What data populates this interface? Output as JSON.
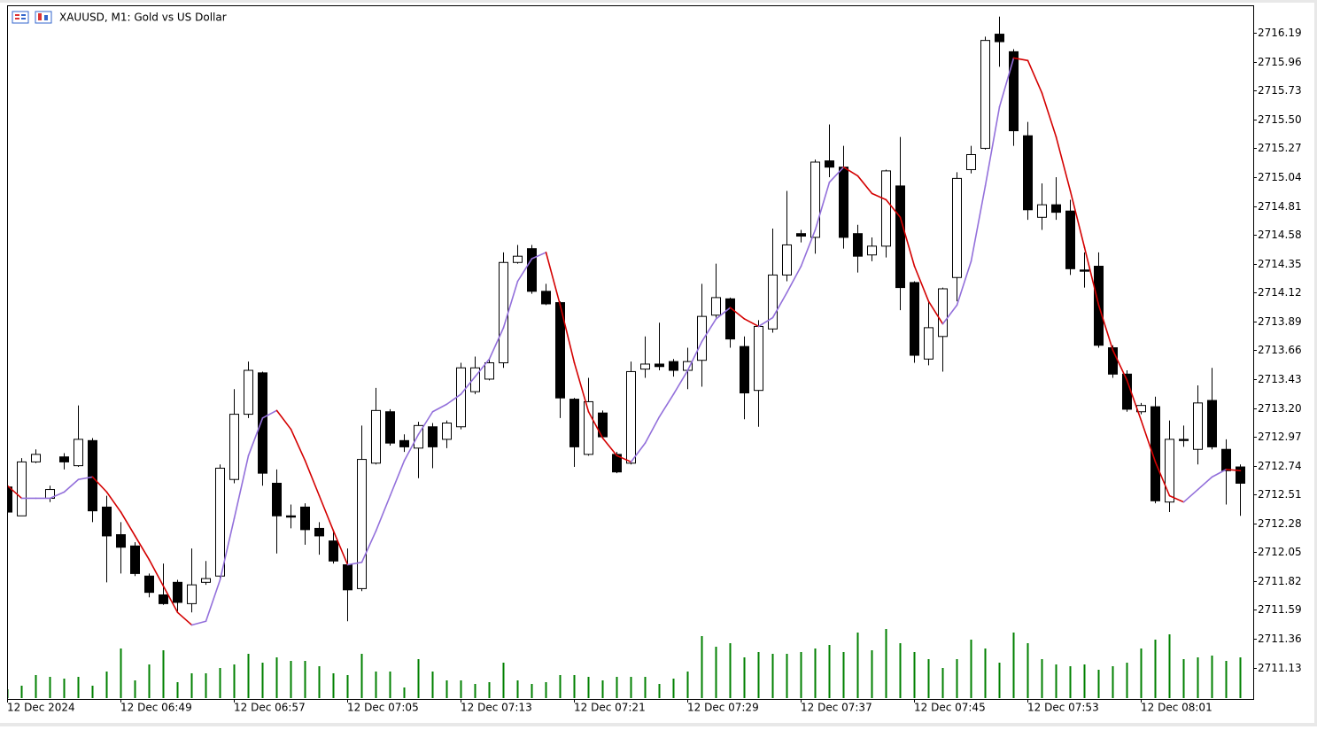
{
  "chart_data": {
    "type": "candlestick",
    "title": "XAUUSD, M1:  Gold vs US Dollar",
    "categories": [
      "12 Dec 2024",
      null,
      null,
      null,
      null,
      null,
      null,
      null,
      "12 Dec 06:49",
      null,
      null,
      null,
      null,
      null,
      null,
      null,
      "12 Dec 06:57",
      null,
      null,
      null,
      null,
      null,
      null,
      null,
      "12 Dec 07:05",
      null,
      null,
      null,
      null,
      null,
      null,
      null,
      "12 Dec 07:13",
      null,
      null,
      null,
      null,
      null,
      null,
      null,
      "12 Dec 07:21",
      null,
      null,
      null,
      null,
      null,
      null,
      null,
      "12 Dec 07:29",
      null,
      null,
      null,
      null,
      null,
      null,
      null,
      "12 Dec 07:37",
      null,
      null,
      null,
      null,
      null,
      null,
      null,
      "12 Dec 07:45",
      null,
      null,
      null,
      null,
      null,
      null,
      null,
      "12 Dec 07:53",
      null,
      null,
      null,
      null,
      null,
      null,
      null,
      "12 Dec 08:01",
      null,
      null,
      null,
      null,
      null,
      null,
      null
    ],
    "open": [
      2712.57,
      2712.34,
      2712.77,
      2712.48,
      2712.81,
      2712.74,
      2712.94,
      2712.41,
      2712.19,
      2712.1,
      2711.86,
      2711.71,
      2711.81,
      2711.64,
      2711.81,
      2711.86,
      2712.63,
      2713.15,
      2713.48,
      2712.6,
      2712.34,
      2712.41,
      2712.24,
      2712.14,
      2711.95,
      2711.76,
      2712.76,
      2713.17,
      2712.94,
      2712.88,
      2713.05,
      2712.95,
      2713.05,
      2713.33,
      2713.43,
      2713.56,
      2714.36,
      2714.47,
      2714.13,
      2714.04,
      2713.27,
      2712.83,
      2713.16,
      2712.83,
      2712.76,
      2713.51,
      2713.55,
      2713.57,
      2713.5,
      2713.58,
      2713.94,
      2714.07,
      2713.69,
      2713.34,
      2713.83,
      2714.26,
      2714.59,
      2714.56,
      2715.17,
      2715.12,
      2714.59,
      2714.42,
      2714.49,
      2714.97,
      2714.2,
      2713.59,
      2713.77,
      2714.24,
      2715.1,
      2715.27,
      2716.18,
      2716.04,
      2715.37,
      2714.72,
      2714.82,
      2714.77,
      2714.3,
      2714.33,
      2713.68,
      2713.47,
      2713.17,
      2713.21,
      2712.45,
      2712.95,
      2712.87,
      2713.26,
      2712.87,
      2712.73
    ],
    "high": [
      2712.58,
      2712.8,
      2712.87,
      2712.58,
      2712.84,
      2713.22,
      2712.96,
      2712.5,
      2712.29,
      2712.13,
      2711.88,
      2711.96,
      2711.83,
      2712.08,
      2711.98,
      2712.75,
      2713.35,
      2713.57,
      2713.49,
      2712.71,
      2712.43,
      2712.44,
      2712.29,
      2712.23,
      2712.08,
      2713.06,
      2713.36,
      2713.19,
      2712.99,
      2713.09,
      2713.08,
      2713.1,
      2713.56,
      2713.61,
      2713.59,
      2714.44,
      2714.5,
      2714.5,
      2714.19,
      2714.05,
      2713.28,
      2713.44,
      2713.18,
      2712.85,
      2713.57,
      2713.77,
      2713.88,
      2713.59,
      2713.68,
      2714.19,
      2714.35,
      2714.08,
      2713.77,
      2713.9,
      2714.63,
      2714.93,
      2714.62,
      2715.18,
      2715.46,
      2715.29,
      2714.66,
      2714.56,
      2715.1,
      2715.36,
      2714.21,
      2714.05,
      2714.16,
      2715.08,
      2715.29,
      2716.16,
      2716.32,
      2716.06,
      2715.48,
      2714.99,
      2715.04,
      2714.86,
      2714.44,
      2714.44,
      2713.7,
      2713.5,
      2713.24,
      2713.29,
      2713.1,
      2713.06,
      2713.38,
      2713.52,
      2712.95,
      2712.75
    ],
    "low": [
      2712.36,
      2712.34,
      2712.76,
      2712.45,
      2712.71,
      2712.73,
      2712.29,
      2711.81,
      2711.88,
      2711.86,
      2711.69,
      2711.63,
      2711.58,
      2711.57,
      2711.79,
      2711.83,
      2712.6,
      2713.12,
      2712.58,
      2712.04,
      2712.24,
      2712.11,
      2712.03,
      2711.96,
      2711.5,
      2711.74,
      2712.75,
      2712.9,
      2712.85,
      2712.64,
      2712.72,
      2712.88,
      2713.03,
      2713.31,
      2713.42,
      2713.52,
      2714.35,
      2714.11,
      2714.02,
      2713.12,
      2712.73,
      2712.82,
      2712.96,
      2712.68,
      2712.75,
      2713.44,
      2713.5,
      2713.45,
      2713.35,
      2713.37,
      2713.92,
      2713.68,
      2713.11,
      2713.05,
      2713.8,
      2714.21,
      2714.52,
      2714.43,
      2715.04,
      2714.47,
      2714.28,
      2714.37,
      2714.4,
      2713.98,
      2713.56,
      2713.54,
      2713.49,
      2714.05,
      2715.07,
      2715.26,
      2715.92,
      2715.29,
      2714.7,
      2714.62,
      2714.7,
      2714.26,
      2714.16,
      2713.68,
      2713.44,
      2713.17,
      2713.15,
      2712.44,
      2712.37,
      2712.89,
      2712.75,
      2712.87,
      2712.43,
      2712.34
    ],
    "close": [
      2712.37,
      2712.77,
      2712.83,
      2712.55,
      2712.77,
      2712.95,
      2712.38,
      2712.18,
      2712.09,
      2711.88,
      2711.73,
      2711.64,
      2711.65,
      2711.79,
      2711.84,
      2712.72,
      2713.15,
      2713.5,
      2712.68,
      2712.34,
      2712.33,
      2712.23,
      2712.18,
      2711.98,
      2711.75,
      2712.79,
      2713.18,
      2712.92,
      2712.89,
      2713.06,
      2712.89,
      2713.08,
      2713.52,
      2713.52,
      2713.56,
      2714.36,
      2714.41,
      2714.13,
      2714.03,
      2713.28,
      2712.89,
      2713.25,
      2712.97,
      2712.69,
      2713.49,
      2713.55,
      2713.53,
      2713.5,
      2713.57,
      2713.93,
      2714.08,
      2713.75,
      2713.32,
      2713.85,
      2714.26,
      2714.5,
      2714.57,
      2715.16,
      2715.12,
      2714.56,
      2714.41,
      2714.49,
      2715.09,
      2714.16,
      2713.62,
      2713.84,
      2714.15,
      2715.03,
      2715.22,
      2716.13,
      2716.12,
      2715.41,
      2714.78,
      2714.82,
      2714.76,
      2714.31,
      2714.29,
      2713.7,
      2713.47,
      2713.19,
      2713.22,
      2712.46,
      2712.95,
      2712.94,
      2713.24,
      2712.89,
      2712.7,
      2712.6
    ],
    "ma": [
      2712.58,
      2712.48,
      2712.48,
      2712.48,
      2712.53,
      2712.63,
      2712.65,
      2712.53,
      2712.37,
      2712.18,
      2711.99,
      2711.78,
      2711.57,
      2711.47,
      2711.5,
      2711.83,
      2712.32,
      2712.82,
      2713.12,
      2713.18,
      2713.03,
      2712.78,
      2712.5,
      2712.22,
      2711.95,
      2711.97,
      2712.22,
      2712.5,
      2712.78,
      2712.99,
      2713.17,
      2713.23,
      2713.31,
      2713.45,
      2713.59,
      2713.84,
      2714.21,
      2714.39,
      2714.44,
      2714.02,
      2713.56,
      2713.17,
      2712.96,
      2712.82,
      2712.77,
      2712.92,
      2713.13,
      2713.31,
      2713.5,
      2713.73,
      2713.91,
      2714.0,
      2713.91,
      2713.85,
      2713.92,
      2714.12,
      2714.33,
      2714.62,
      2715.0,
      2715.12,
      2715.05,
      2714.91,
      2714.86,
      2714.72,
      2714.33,
      2714.05,
      2713.87,
      2714.02,
      2714.37,
      2714.97,
      2715.6,
      2715.99,
      2715.97,
      2715.71,
      2715.36,
      2714.93,
      2714.48,
      2714.02,
      2713.66,
      2713.42,
      2713.1,
      2712.77,
      2712.5,
      2712.45,
      2712.55,
      2712.65,
      2712.71,
      2712.7
    ],
    "volume": [
      10,
      14,
      26,
      24,
      22,
      24,
      14,
      30,
      56,
      20,
      38,
      54,
      18,
      28,
      28,
      34,
      38,
      50,
      40,
      46,
      42,
      42,
      36,
      28,
      26,
      50,
      30,
      30,
      12,
      44,
      30,
      20,
      20,
      16,
      18,
      40,
      20,
      16,
      18,
      26,
      26,
      24,
      20,
      24,
      24,
      24,
      16,
      22,
      30,
      70,
      58,
      62,
      46,
      52,
      50,
      50,
      52,
      56,
      60,
      52,
      74,
      54,
      78,
      62,
      52,
      44,
      34,
      44,
      66,
      56,
      40,
      74,
      62,
      44,
      38,
      36,
      38,
      32,
      36,
      40,
      56,
      66,
      72,
      44,
      46,
      48,
      42,
      46
    ],
    "ylim": [
      2710.88,
      2716.41
    ],
    "yticks": [
      2716.19,
      2715.96,
      2715.73,
      {
        "value": 2715.5,
        "label": "2715.50"
      },
      2715.27,
      2715.04,
      2714.81,
      2714.58,
      2714.35,
      2714.12,
      2713.89,
      2713.66,
      2713.43,
      {
        "value": 2713.2,
        "label": "2713.20"
      },
      2712.97,
      2712.74,
      2712.51,
      2712.28,
      2712.05,
      2711.82,
      2711.59,
      2711.36,
      2711.13
    ],
    "up_color": "#ffffff",
    "down_color": "#000000",
    "ma_up_color": "#9370db",
    "ma_down_color": "#d40000",
    "volume_color": "#008000"
  }
}
